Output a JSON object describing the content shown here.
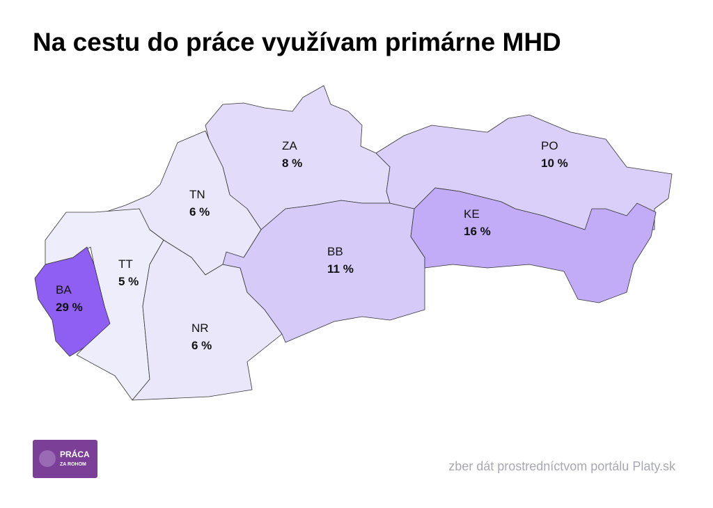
{
  "title": "Na cestu do práce využívam primárne MHD",
  "source": "zber dát prostredníctvom portálu Platy.sk",
  "logo": {
    "line1": "PRÁCA",
    "line2": "ZA ROHOM"
  },
  "color_scale": [
    "#eeedfb",
    "#8e5ff2"
  ],
  "regions": [
    {
      "code": "ZA",
      "value": 8,
      "value_label": "8 %"
    },
    {
      "code": "TN",
      "value": 6,
      "value_label": "6 %"
    },
    {
      "code": "TT",
      "value": 5,
      "value_label": "5 %"
    },
    {
      "code": "BA",
      "value": 29,
      "value_label": "29 %"
    },
    {
      "code": "NR",
      "value": 6,
      "value_label": "6 %"
    },
    {
      "code": "BB",
      "value": 11,
      "value_label": "11 %"
    },
    {
      "code": "PO",
      "value": 10,
      "value_label": "10 %"
    },
    {
      "code": "KE",
      "value": 16,
      "value_label": "16 %"
    }
  ]
}
